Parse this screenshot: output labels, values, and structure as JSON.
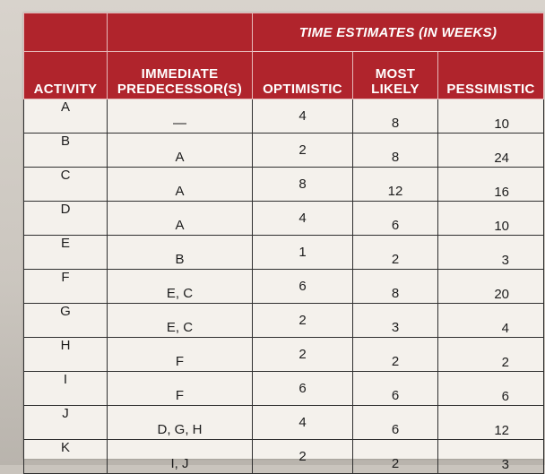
{
  "header": {
    "group_title": "TIME ESTIMATES (IN WEEKS)",
    "activity": "ACTIVITY",
    "predecessor_line1": "IMMEDIATE",
    "predecessor_line2": "PREDECESSOR(S)",
    "optimistic": "OPTIMISTIC",
    "most_line1": "MOST",
    "most_line2": "LIKELY",
    "pessimistic": "PESSIMISTIC"
  },
  "rows": [
    {
      "activity": "A",
      "predecessors": "—",
      "optimistic": "4",
      "most_likely": "8",
      "pessimistic": "10"
    },
    {
      "activity": "B",
      "predecessors": "A",
      "optimistic": "2",
      "most_likely": "8",
      "pessimistic": "24"
    },
    {
      "activity": "C",
      "predecessors": "A",
      "optimistic": "8",
      "most_likely": "12",
      "pessimistic": "16"
    },
    {
      "activity": "D",
      "predecessors": "A",
      "optimistic": "4",
      "most_likely": "6",
      "pessimistic": "10"
    },
    {
      "activity": "E",
      "predecessors": "B",
      "optimistic": "1",
      "most_likely": "2",
      "pessimistic": "3"
    },
    {
      "activity": "F",
      "predecessors": "E, C",
      "optimistic": "6",
      "most_likely": "8",
      "pessimistic": "20"
    },
    {
      "activity": "G",
      "predecessors": "E, C",
      "optimistic": "2",
      "most_likely": "3",
      "pessimistic": "4"
    },
    {
      "activity": "H",
      "predecessors": "F",
      "optimistic": "2",
      "most_likely": "2",
      "pessimistic": "2"
    },
    {
      "activity": "I",
      "predecessors": "F",
      "optimistic": "6",
      "most_likely": "6",
      "pessimistic": "6"
    },
    {
      "activity": "J",
      "predecessors": "D, G, H",
      "optimistic": "4",
      "most_likely": "6",
      "pessimistic": "12"
    },
    {
      "activity": "K",
      "predecessors": "I, J",
      "optimistic": "2",
      "most_likely": "2",
      "pessimistic": "3"
    }
  ],
  "colors": {
    "header_background": "#b0242c",
    "header_text": "#ffffff",
    "table_background": "#f4f1ec",
    "cell_border": "#2f2f2f"
  }
}
